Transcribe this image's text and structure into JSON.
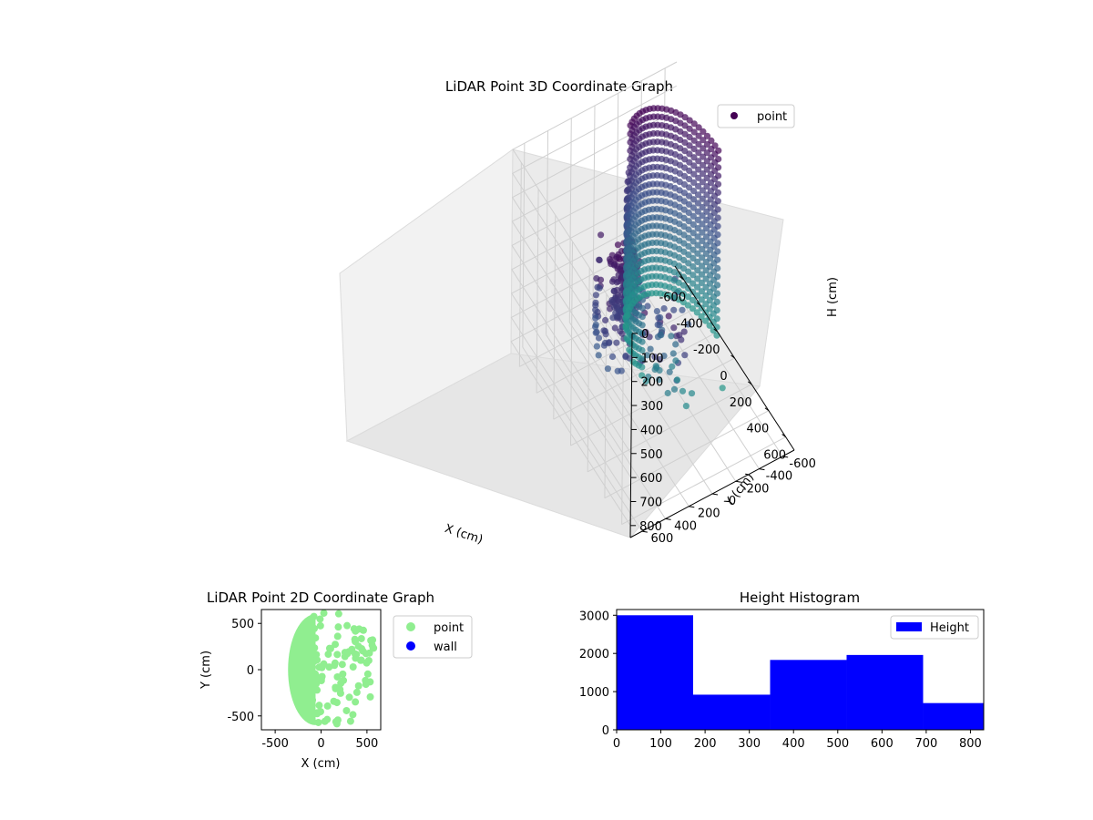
{
  "chart_data": [
    {
      "type": "scatter",
      "projection": "3d",
      "title": "LiDAR Point 3D Coordinate Graph",
      "xlabel": "X (cm)",
      "ylabel": "Y (cm)",
      "zlabel": "H (cm)",
      "xlim": [
        -700,
        700
      ],
      "ylim": [
        -700,
        700
      ],
      "zlim": [
        850,
        0
      ],
      "x_ticks": [
        -600,
        -400,
        -200,
        0,
        200,
        400,
        600
      ],
      "y_ticks": [
        -600,
        -400,
        -200,
        0,
        200,
        400,
        600
      ],
      "z_ticks": [
        0,
        100,
        200,
        300,
        400,
        500,
        600,
        700,
        800
      ],
      "grid": true,
      "colormap": "viridis",
      "legend_position": "upper right",
      "series": [
        {
          "name": "point",
          "color": "#440154",
          "description_groups": [
            {
              "shape": "half-cylinder wall",
              "x_range": [
                -550,
                300
              ],
              "y_range": [
                -600,
                0
              ],
              "h_range": [
                0,
                800
              ]
            },
            {
              "shape": "upper cluster",
              "x_center": 150,
              "y_center": 350,
              "h_range": [
                50,
                350
              ]
            },
            {
              "shape": "scattered arcs",
              "x_range": [
                -100,
                600
              ],
              "y_range": [
                0,
                650
              ],
              "h_range": [
                100,
                800
              ]
            }
          ]
        }
      ]
    },
    {
      "type": "scatter",
      "title": "LiDAR Point 2D Coordinate Graph",
      "xlabel": "X (cm)",
      "ylabel": "Y (cm)",
      "xlim": [
        -650,
        650
      ],
      "ylim": [
        -650,
        650
      ],
      "x_ticks": [
        -500,
        0,
        500
      ],
      "y_ticks": [
        -500,
        0,
        500
      ],
      "legend_position": "outside right",
      "series": [
        {
          "name": "point",
          "color": "#90ee90"
        },
        {
          "name": "wall",
          "color": "#0000ff"
        }
      ]
    },
    {
      "type": "bar",
      "subtype": "histogram",
      "title": "Height Histogram",
      "xlim": [
        0,
        830
      ],
      "ylim": [
        0,
        3150
      ],
      "x_ticks": [
        0,
        100,
        200,
        300,
        400,
        500,
        600,
        700,
        800
      ],
      "y_ticks": [
        0,
        1000,
        2000,
        3000
      ],
      "legend_position": "upper right",
      "series": [
        {
          "name": "Height",
          "color": "#0000ff",
          "bins": [
            [
              0,
              173
            ],
            [
              173,
              347
            ],
            [
              347,
              520
            ],
            [
              520,
              693
            ],
            [
              693,
              866
            ]
          ],
          "values": [
            3000,
            920,
            1830,
            1960,
            700
          ]
        }
      ]
    }
  ]
}
